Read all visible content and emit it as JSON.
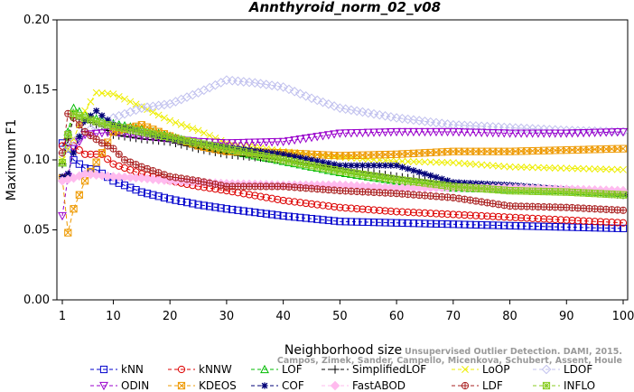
{
  "chart_data": {
    "type": "line",
    "title": "Annthyroid_norm_02_v08",
    "xlabel": "Neighborhood size",
    "ylabel": "Maximum F1",
    "xlim": [
      1,
      100
    ],
    "ylim": [
      0,
      0.2
    ],
    "x_ticks": [
      "1",
      "10",
      "20",
      "30",
      "40",
      "50",
      "60",
      "70",
      "80",
      "90",
      "100"
    ],
    "y_ticks": [
      "0.00",
      "0.05",
      "0.10",
      "0.15",
      "0.20"
    ],
    "grid": false,
    "legend_position": "bottom",
    "series": [
      {
        "name": "kNN",
        "color": "#0000cc",
        "marker": "square",
        "points": [
          [
            1,
            0.112
          ],
          [
            2,
            0.108
          ],
          [
            3,
            0.1
          ],
          [
            5,
            0.094
          ],
          [
            7,
            0.093
          ],
          [
            10,
            0.085
          ],
          [
            15,
            0.077
          ],
          [
            20,
            0.072
          ],
          [
            25,
            0.068
          ],
          [
            30,
            0.065
          ],
          [
            40,
            0.06
          ],
          [
            50,
            0.056
          ],
          [
            60,
            0.055
          ],
          [
            70,
            0.054
          ],
          [
            80,
            0.053
          ],
          [
            90,
            0.052
          ],
          [
            100,
            0.051
          ]
        ]
      },
      {
        "name": "kNNW",
        "color": "#dd0000",
        "marker": "circle",
        "points": [
          [
            1,
            0.11
          ],
          [
            2,
            0.112
          ],
          [
            3,
            0.11
          ],
          [
            5,
            0.104
          ],
          [
            8,
            0.104
          ],
          [
            10,
            0.097
          ],
          [
            15,
            0.09
          ],
          [
            20,
            0.085
          ],
          [
            25,
            0.081
          ],
          [
            30,
            0.078
          ],
          [
            40,
            0.071
          ],
          [
            50,
            0.066
          ],
          [
            60,
            0.063
          ],
          [
            70,
            0.061
          ],
          [
            80,
            0.059
          ],
          [
            90,
            0.057
          ],
          [
            100,
            0.055
          ]
        ]
      },
      {
        "name": "LOF",
        "color": "#00bb00",
        "marker": "triangle",
        "points": [
          [
            1,
            0.098
          ],
          [
            2,
            0.12
          ],
          [
            3,
            0.137
          ],
          [
            5,
            0.132
          ],
          [
            8,
            0.128
          ],
          [
            10,
            0.126
          ],
          [
            15,
            0.122
          ],
          [
            20,
            0.117
          ],
          [
            25,
            0.111
          ],
          [
            30,
            0.107
          ],
          [
            40,
            0.099
          ],
          [
            50,
            0.091
          ],
          [
            60,
            0.085
          ],
          [
            70,
            0.08
          ],
          [
            80,
            0.079
          ],
          [
            90,
            0.078
          ],
          [
            100,
            0.076
          ]
        ]
      },
      {
        "name": "SimplifiedLOF",
        "color": "#000000",
        "marker": "plus",
        "points": [
          [
            1,
            0.097
          ],
          [
            2,
            0.115
          ],
          [
            3,
            0.13
          ],
          [
            5,
            0.128
          ],
          [
            8,
            0.124
          ],
          [
            10,
            0.118
          ],
          [
            15,
            0.115
          ],
          [
            20,
            0.113
          ],
          [
            25,
            0.108
          ],
          [
            30,
            0.104
          ],
          [
            40,
            0.1
          ],
          [
            50,
            0.094
          ],
          [
            60,
            0.088
          ],
          [
            70,
            0.083
          ],
          [
            80,
            0.08
          ],
          [
            90,
            0.078
          ],
          [
            100,
            0.075
          ]
        ]
      },
      {
        "name": "LoOP",
        "color": "#eeee00",
        "marker": "x",
        "points": [
          [
            1,
            0.1
          ],
          [
            3,
            0.115
          ],
          [
            5,
            0.135
          ],
          [
            7,
            0.148
          ],
          [
            10,
            0.147
          ],
          [
            15,
            0.138
          ],
          [
            20,
            0.128
          ],
          [
            25,
            0.121
          ],
          [
            30,
            0.112
          ],
          [
            40,
            0.106
          ],
          [
            50,
            0.102
          ],
          [
            60,
            0.099
          ],
          [
            70,
            0.098
          ],
          [
            80,
            0.095
          ],
          [
            90,
            0.094
          ],
          [
            100,
            0.093
          ]
        ]
      },
      {
        "name": "LDOF",
        "color": "#c0c0ee",
        "marker": "diamond",
        "points": [
          [
            1,
            0.105
          ],
          [
            3,
            0.113
          ],
          [
            5,
            0.12
          ],
          [
            10,
            0.13
          ],
          [
            15,
            0.137
          ],
          [
            20,
            0.14
          ],
          [
            25,
            0.148
          ],
          [
            30,
            0.157
          ],
          [
            35,
            0.155
          ],
          [
            40,
            0.152
          ],
          [
            45,
            0.144
          ],
          [
            50,
            0.137
          ],
          [
            60,
            0.13
          ],
          [
            70,
            0.125
          ],
          [
            80,
            0.123
          ],
          [
            90,
            0.121
          ],
          [
            100,
            0.12
          ]
        ]
      },
      {
        "name": "ODIN",
        "color": "#9900cc",
        "marker": "triangle-down",
        "points": [
          [
            1,
            0.06
          ],
          [
            2,
            0.088
          ],
          [
            3,
            0.108
          ],
          [
            5,
            0.118
          ],
          [
            10,
            0.12
          ],
          [
            15,
            0.117
          ],
          [
            20,
            0.115
          ],
          [
            25,
            0.113
          ],
          [
            30,
            0.112
          ],
          [
            40,
            0.113
          ],
          [
            50,
            0.119
          ],
          [
            60,
            0.12
          ],
          [
            70,
            0.12
          ],
          [
            80,
            0.119
          ],
          [
            90,
            0.119
          ],
          [
            100,
            0.12
          ]
        ]
      },
      {
        "name": "KDEOS",
        "color": "#ee9900",
        "marker": "square-x",
        "points": [
          [
            1,
            0.087
          ],
          [
            2,
            0.048
          ],
          [
            3,
            0.065
          ],
          [
            5,
            0.085
          ],
          [
            8,
            0.105
          ],
          [
            10,
            0.12
          ],
          [
            15,
            0.125
          ],
          [
            20,
            0.117
          ],
          [
            25,
            0.11
          ],
          [
            30,
            0.106
          ],
          [
            40,
            0.105
          ],
          [
            50,
            0.103
          ],
          [
            60,
            0.104
          ],
          [
            70,
            0.106
          ],
          [
            80,
            0.106
          ],
          [
            90,
            0.107
          ],
          [
            100,
            0.108
          ]
        ]
      },
      {
        "name": "COF",
        "color": "#000077",
        "marker": "star",
        "points": [
          [
            1,
            0.088
          ],
          [
            2,
            0.09
          ],
          [
            3,
            0.105
          ],
          [
            5,
            0.128
          ],
          [
            7,
            0.135
          ],
          [
            10,
            0.125
          ],
          [
            15,
            0.12
          ],
          [
            20,
            0.115
          ],
          [
            25,
            0.112
          ],
          [
            30,
            0.109
          ],
          [
            40,
            0.104
          ],
          [
            50,
            0.096
          ],
          [
            60,
            0.096
          ],
          [
            70,
            0.084
          ],
          [
            80,
            0.082
          ],
          [
            90,
            0.079
          ],
          [
            100,
            0.076
          ]
        ]
      },
      {
        "name": "FastABOD",
        "color": "#ffbbee",
        "marker": "diamond-filled",
        "points": [
          [
            1,
            0.085
          ],
          [
            3,
            0.087
          ],
          [
            5,
            0.09
          ],
          [
            10,
            0.088
          ],
          [
            15,
            0.087
          ],
          [
            20,
            0.085
          ],
          [
            30,
            0.083
          ],
          [
            40,
            0.082
          ],
          [
            50,
            0.082
          ],
          [
            60,
            0.08
          ],
          [
            70,
            0.08
          ],
          [
            80,
            0.08
          ],
          [
            90,
            0.079
          ],
          [
            100,
            0.078
          ]
        ]
      },
      {
        "name": "LDF",
        "color": "#aa2222",
        "marker": "circle-plus",
        "points": [
          [
            1,
            0.105
          ],
          [
            2,
            0.133
          ],
          [
            3,
            0.13
          ],
          [
            5,
            0.12
          ],
          [
            8,
            0.112
          ],
          [
            10,
            0.108
          ],
          [
            12,
            0.1
          ],
          [
            15,
            0.095
          ],
          [
            20,
            0.088
          ],
          [
            25,
            0.085
          ],
          [
            30,
            0.081
          ],
          [
            40,
            0.081
          ],
          [
            50,
            0.078
          ],
          [
            60,
            0.076
          ],
          [
            70,
            0.073
          ],
          [
            80,
            0.067
          ],
          [
            90,
            0.066
          ],
          [
            100,
            0.064
          ]
        ]
      },
      {
        "name": "INFLO",
        "color": "#88cc22",
        "marker": "square-star",
        "points": [
          [
            1,
            0.098
          ],
          [
            2,
            0.118
          ],
          [
            3,
            0.133
          ],
          [
            5,
            0.13
          ],
          [
            8,
            0.126
          ],
          [
            10,
            0.124
          ],
          [
            15,
            0.12
          ],
          [
            20,
            0.116
          ],
          [
            25,
            0.112
          ],
          [
            30,
            0.108
          ],
          [
            40,
            0.1
          ],
          [
            50,
            0.092
          ],
          [
            60,
            0.086
          ],
          [
            70,
            0.081
          ],
          [
            80,
            0.078
          ],
          [
            90,
            0.077
          ],
          [
            100,
            0.075
          ]
        ]
      }
    ]
  },
  "watermark": {
    "line1": "Unsupervised Outlier Detection. DAMI, 2015.",
    "line2": "Campos, Zimek, Sander, Campello, Micenkova, Schubert, Assent, Houle"
  }
}
